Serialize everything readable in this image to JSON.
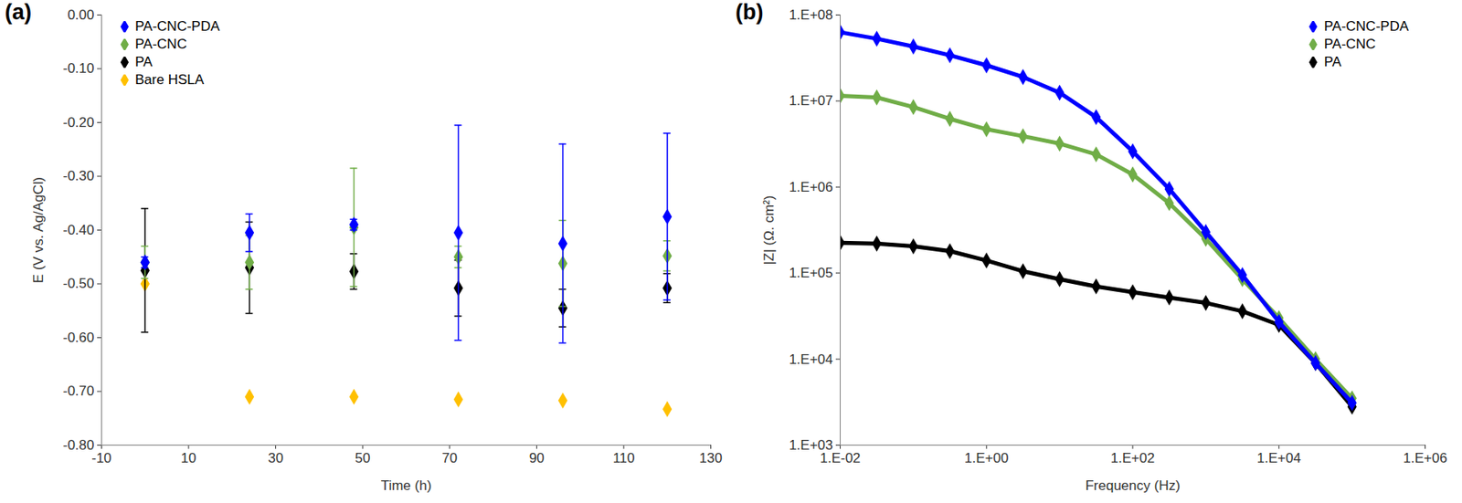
{
  "chart_data": [
    {
      "type": "scatter",
      "title": "(a)",
      "x_label": "Time (h)",
      "y_label": "E (V vs. Ag/AgCl)",
      "x": [
        0,
        24,
        48,
        72,
        96,
        120
      ],
      "series": [
        {
          "name": "PA-CNC-PDA",
          "color": "#0000ff",
          "marker": "diamond",
          "values": [
            -0.46,
            -0.405,
            -0.39,
            -0.405,
            -0.425,
            -0.375
          ],
          "errors": [
            0.01,
            0.035,
            0.01,
            0.2,
            0.185,
            0.155
          ]
        },
        {
          "name": "PA-CNC",
          "color": "#70ad47",
          "marker": "diamond",
          "values": [
            -0.46,
            -0.46,
            -0.395,
            -0.45,
            -0.462,
            -0.448
          ],
          "errors": [
            0.03,
            0.05,
            0.11,
            0.02,
            0.08,
            0.028
          ]
        },
        {
          "name": "PA",
          "color": "#000000",
          "marker": "diamond",
          "values": [
            -0.475,
            -0.47,
            -0.477,
            -0.508,
            -0.545,
            -0.508
          ],
          "errors": [
            0.115,
            0.085,
            0.033,
            0.052,
            0.035,
            0.027
          ]
        },
        {
          "name": "Bare HSLA",
          "color": "#ffc000",
          "marker": "diamond",
          "values": [
            -0.5,
            -0.71,
            -0.71,
            -0.715,
            -0.717,
            -0.733
          ],
          "errors": [
            null,
            null,
            null,
            null,
            null,
            null
          ]
        }
      ],
      "xlim": [
        -10,
        130
      ],
      "xticks": [
        -10,
        10,
        30,
        50,
        70,
        90,
        110,
        130
      ],
      "ylim": [
        -0.8,
        0
      ],
      "yticks": [
        {
          "value": -0.8,
          "label": "-0.80"
        },
        {
          "value": -0.7,
          "label": "-0.70"
        },
        {
          "value": -0.6,
          "label": "-0.60"
        },
        {
          "value": -0.5,
          "label": "-0.50"
        },
        {
          "value": -0.4,
          "label": "-0.40"
        },
        {
          "value": -0.3,
          "label": "-0.30"
        },
        {
          "value": -0.2,
          "label": "-0.20"
        },
        {
          "value": -0.1,
          "label": "-0.10"
        },
        {
          "value": 0,
          "label": "0.00"
        }
      ],
      "grid": false,
      "legend": "top-left"
    },
    {
      "type": "line",
      "title": "(b)",
      "x_label": "Frequency (Hz)",
      "y_label": "|Z| (Ω. cm²)",
      "x": [
        0.01,
        0.0316,
        0.1,
        0.316,
        1,
        3.16,
        10,
        31.6,
        100,
        316,
        1000,
        3162,
        10000,
        31623,
        100000
      ],
      "series": [
        {
          "name": "PA-CNC-PDA",
          "color": "#0000ff",
          "marker": "diamond",
          "values": [
            63000000,
            53000000,
            43000000,
            34000000,
            26000000,
            19000000,
            12500000,
            6500000,
            2600000,
            950000,
            300000,
            95000,
            27000,
            9000,
            3100
          ]
        },
        {
          "name": "PA-CNC",
          "color": "#70ad47",
          "marker": "diamond",
          "values": [
            11500000,
            11000000,
            8500000,
            6200000,
            4700000,
            3900000,
            3200000,
            2400000,
            1400000,
            650000,
            250000,
            85000,
            30000,
            10000,
            3500
          ]
        },
        {
          "name": "PA",
          "color": "#000000",
          "marker": "diamond",
          "values": [
            225000,
            220000,
            205000,
            180000,
            140000,
            105000,
            85000,
            70000,
            60000,
            52000,
            45000,
            36000,
            25000,
            9000,
            2800
          ]
        }
      ],
      "log": true,
      "xlim": [
        0.01,
        1000000
      ],
      "xticks": [
        {
          "value": 0.01,
          "label": "1.E-02"
        },
        {
          "value": 1,
          "label": "1.E+00"
        },
        {
          "value": 100,
          "label": "1.E+02"
        },
        {
          "value": 10000,
          "label": "1.E+04"
        },
        {
          "value": 1000000,
          "label": "1.E+06"
        }
      ],
      "ylim": [
        1000,
        100000000
      ],
      "yticks": [
        {
          "value": 1000,
          "label": "1.E+03"
        },
        {
          "value": 10000,
          "label": "1.E+04"
        },
        {
          "value": 100000,
          "label": "1.E+05"
        },
        {
          "value": 1000000,
          "label": "1.E+06"
        },
        {
          "value": 10000000,
          "label": "1.E+07"
        },
        {
          "value": 100000000,
          "label": "1.E+08"
        }
      ],
      "grid": false,
      "legend": "top-right"
    }
  ]
}
